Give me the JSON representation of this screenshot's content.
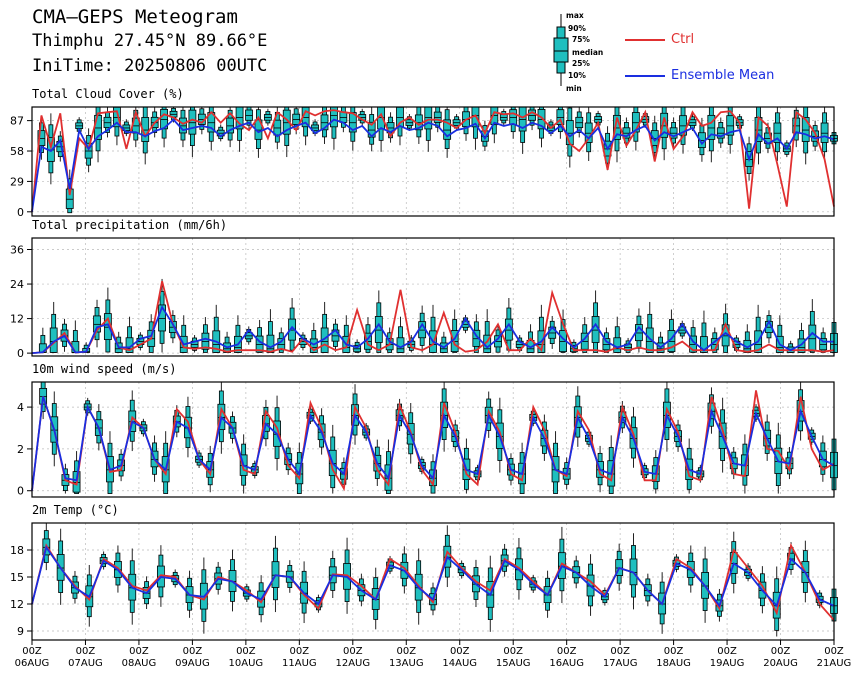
{
  "header": {
    "title": "CMA—GEPS Meteogram",
    "location": "Thimphu 27.45°N 89.66°E",
    "init_time": "IniTime: 20250806 00UTC"
  },
  "legend": {
    "ctrl_label": "Ctrl",
    "mean_label": "Ensemble Mean",
    "ctrl_color": "#e03030",
    "mean_color": "#1a2ee0",
    "box_color": "#1fbfbf",
    "box_labels": {
      "max": "max",
      "p90": "90%",
      "p75": "75%",
      "median": "median",
      "p25": "25%",
      "p10": "10%",
      "min": "min"
    }
  },
  "x_labels": [
    [
      "00Z",
      "06AUG"
    ],
    [
      "00Z",
      "07AUG"
    ],
    [
      "00Z",
      "08AUG"
    ],
    [
      "00Z",
      "09AUG"
    ],
    [
      "00Z",
      "10AUG"
    ],
    [
      "00Z",
      "11AUG"
    ],
    [
      "00Z",
      "12AUG"
    ],
    [
      "00Z",
      "13AUG"
    ],
    [
      "00Z",
      "14AUG"
    ],
    [
      "00Z",
      "15AUG"
    ],
    [
      "00Z",
      "16AUG"
    ],
    [
      "00Z",
      "17AUG"
    ],
    [
      "00Z",
      "18AUG"
    ],
    [
      "00Z",
      "19AUG"
    ],
    [
      "00Z",
      "20AUG"
    ],
    [
      "00Z",
      "21AUG"
    ]
  ],
  "chart_data": [
    {
      "type": "line",
      "title": "Total Cloud Cover (%)",
      "ylim": [
        -4,
        100
      ],
      "yticks": [
        0,
        29,
        58,
        87
      ],
      "grid": true,
      "series": [
        {
          "name": "Ctrl",
          "values": [
            0,
            92,
            62,
            94,
            16,
            70,
            60,
            94,
            95,
            96,
            60,
            95,
            72,
            85,
            93,
            90,
            84,
            88,
            85,
            95,
            85,
            94,
            84,
            78,
            90,
            70,
            95,
            88,
            78,
            96,
            92,
            96,
            97,
            95,
            94,
            88,
            83,
            93,
            72,
            85,
            90,
            83,
            88,
            88,
            85,
            80,
            88,
            92,
            75,
            95,
            93,
            94,
            90,
            95,
            90,
            80,
            88,
            65,
            58,
            70,
            85,
            40,
            90,
            63,
            78,
            95,
            48,
            90,
            60,
            72,
            95,
            82,
            85,
            95,
            96,
            85,
            3,
            90,
            82,
            45,
            5,
            95,
            88,
            75,
            50,
            5
          ]
        },
        {
          "name": "Ensemble Mean",
          "values": [
            0,
            62,
            58,
            68,
            22,
            78,
            60,
            72,
            78,
            85,
            76,
            76,
            72,
            77,
            80,
            88,
            78,
            80,
            82,
            80,
            72,
            78,
            82,
            85,
            76,
            80,
            72,
            78,
            82,
            85,
            75,
            80,
            88,
            85,
            78,
            82,
            72,
            80,
            76,
            82,
            78,
            80,
            85,
            82,
            72,
            78,
            80,
            84,
            70,
            85,
            82,
            84,
            80,
            85,
            82,
            75,
            82,
            72,
            78,
            70,
            80,
            60,
            74,
            72,
            78,
            82,
            68,
            76,
            72,
            76,
            80,
            65,
            74,
            72,
            76,
            78,
            50,
            74,
            65,
            70,
            60,
            76,
            74,
            70,
            72,
            69
          ]
        },
        {
          "name": "box_median",
          "values": [
            0,
            70,
            59,
            62,
            12,
            82,
            58,
            80,
            85,
            90,
            80,
            82,
            78,
            85,
            88,
            93,
            82,
            85,
            88,
            85,
            75,
            82,
            90,
            92,
            78,
            90,
            80,
            85,
            88,
            90,
            80,
            85,
            92,
            90,
            85,
            90,
            78,
            90,
            80,
            90,
            85,
            85,
            90,
            90,
            78,
            85,
            88,
            92,
            72,
            92,
            90,
            90,
            88,
            92,
            88,
            80,
            90,
            75,
            85,
            75,
            88,
            60,
            80,
            75,
            85,
            88,
            70,
            82,
            75,
            82,
            85,
            68,
            80,
            75,
            82,
            85,
            50,
            78,
            70,
            75,
            60,
            82,
            78,
            72,
            75,
            70
          ]
        }
      ]
    },
    {
      "type": "line",
      "title": "Total precipitation (mm/6h)",
      "ylim": [
        -1,
        40
      ],
      "yticks": [
        0,
        12,
        24,
        36
      ],
      "grid": true,
      "series": [
        {
          "name": "Ctrl",
          "values": [
            0,
            0.3,
            3.5,
            7,
            0.2,
            0.5,
            8,
            12,
            2,
            1,
            3,
            5,
            25,
            10,
            2,
            1.5,
            2,
            1.5,
            0.5,
            1,
            1,
            1,
            0.5,
            1.5,
            0.5,
            5,
            1,
            3,
            1,
            2,
            15,
            3,
            1,
            3,
            22,
            2,
            1,
            3,
            14,
            3,
            0.5,
            1,
            4,
            10,
            1,
            1,
            5,
            1,
            21,
            10,
            1,
            1,
            1,
            0.5,
            2,
            1,
            2,
            1,
            1,
            2,
            4,
            1,
            1,
            1,
            10,
            1,
            0.5,
            1,
            3,
            1,
            1,
            1,
            1,
            0.5,
            1
          ]
        },
        {
          "name": "Ensemble Mean",
          "values": [
            0,
            0.3,
            4,
            6,
            0.2,
            0.5,
            9,
            10,
            2,
            2,
            5,
            6,
            16,
            10,
            3,
            4,
            5,
            4,
            2,
            3,
            8,
            4,
            2,
            4,
            9,
            5,
            3,
            5,
            8,
            3,
            2,
            5,
            10,
            4,
            2,
            4,
            10,
            4,
            2,
            5,
            12,
            6,
            2,
            5,
            10,
            4,
            2,
            4,
            9,
            5,
            2,
            5,
            10,
            4,
            2,
            3,
            9,
            5,
            2,
            5,
            10,
            4,
            1,
            4,
            7,
            4,
            2,
            4,
            11,
            3,
            1,
            3,
            7,
            4,
            4
          ]
        },
        {
          "name": "box_median",
          "values": [
            0,
            0.3,
            4,
            6,
            0.2,
            0.5,
            10,
            9,
            1.5,
            1.5,
            4,
            5,
            12,
            9,
            2,
            3,
            4,
            3,
            1.5,
            2,
            6,
            3,
            1.5,
            3,
            8,
            4,
            2,
            4,
            6,
            2,
            1.5,
            4,
            8,
            3,
            1.5,
            3,
            8,
            3,
            1.5,
            4,
            10,
            5,
            1.5,
            4,
            8,
            3,
            1.5,
            3,
            7,
            4,
            1.5,
            4,
            8,
            3,
            1.5,
            2,
            7,
            4,
            1.5,
            4,
            8,
            3,
            1,
            3,
            6,
            3,
            1.5,
            3,
            9,
            2,
            1,
            2,
            5,
            3,
            3
          ]
        }
      ]
    },
    {
      "type": "line",
      "title": "10m wind speed (m/s)",
      "ylim": [
        -0.3,
        5.2
      ],
      "yticks": [
        0,
        2,
        4
      ],
      "grid": true,
      "series": [
        {
          "name": "Ctrl",
          "values": [
            0,
            4.5,
            2.9,
            0.5,
            0.3,
            4.0,
            3.0,
            0.9,
            1.0,
            3.5,
            3.0,
            1.5,
            0.8,
            3.9,
            3.3,
            1.5,
            0.8,
            3.9,
            3.0,
            1.0,
            0.8,
            3.8,
            3.0,
            1.2,
            0.6,
            4.2,
            3.0,
            1.0,
            0.1,
            4.0,
            3.0,
            1.0,
            0.3,
            4.1,
            2.8,
            1.0,
            0.3,
            4.2,
            2.8,
            0.8,
            0.3,
            3.8,
            2.8,
            0.8,
            0.5,
            4.0,
            2.9,
            1.0,
            0.7,
            3.8,
            2.9,
            0.8,
            0.5,
            4.0,
            2.7,
            0.5,
            0.5,
            3.9,
            2.8,
            0.7,
            0.5,
            4.5,
            2.9,
            0.8,
            0.7,
            4.8,
            2.0,
            1.9,
            1.0,
            4.5,
            2.0,
            1.0,
            1.3
          ]
        },
        {
          "name": "Ensemble Mean",
          "values": [
            0,
            4.5,
            2.9,
            0.6,
            0.5,
            4.0,
            3.0,
            1.0,
            1.2,
            3.3,
            3.0,
            1.5,
            1.0,
            3.3,
            3.0,
            1.5,
            1.0,
            3.5,
            3.0,
            1.2,
            1.0,
            3.2,
            2.7,
            1.5,
            0.8,
            3.6,
            2.8,
            1.3,
            0.8,
            3.6,
            2.8,
            1.3,
            0.6,
            3.6,
            2.7,
            1.2,
            0.6,
            3.6,
            2.6,
            1.0,
            0.8,
            3.6,
            2.6,
            1.0,
            0.8,
            3.5,
            2.5,
            1.0,
            0.8,
            3.5,
            2.5,
            1.0,
            0.8,
            3.5,
            2.5,
            0.9,
            0.8,
            3.6,
            2.6,
            1.0,
            0.8,
            3.8,
            2.6,
            1.3,
            1.2,
            3.7,
            2.5,
            1.4,
            1.3,
            3.8,
            2.6,
            1.5,
            1.2
          ]
        },
        {
          "name": "box_median",
          "values": [
            0,
            4.5,
            2.9,
            0.5,
            0.4,
            4.0,
            3.0,
            1.0,
            1.2,
            3.3,
            3.0,
            1.5,
            1.0,
            3.3,
            3.0,
            1.5,
            1.0,
            3.5,
            3.0,
            1.2,
            1.0,
            3.2,
            2.7,
            1.5,
            0.8,
            3.6,
            2.8,
            1.3,
            0.8,
            3.6,
            2.8,
            1.3,
            0.6,
            3.6,
            2.7,
            1.2,
            0.6,
            3.6,
            2.6,
            1.0,
            0.8,
            3.6,
            2.6,
            1.0,
            0.8,
            3.5,
            2.5,
            1.0,
            0.8,
            3.5,
            2.5,
            1.0,
            0.8,
            3.5,
            2.5,
            0.9,
            0.8,
            3.6,
            2.6,
            1.0,
            0.8,
            3.8,
            2.6,
            1.3,
            1.2,
            3.7,
            2.5,
            1.4,
            1.3,
            3.8,
            2.6,
            1.5,
            1.2
          ]
        }
      ]
    },
    {
      "type": "line",
      "title": "2m Temp (°C)",
      "ylim": [
        8,
        21
      ],
      "yticks": [
        9,
        12,
        15,
        18
      ],
      "grid": true,
      "series": [
        {
          "name": "Ctrl",
          "values": [
            12,
            18.5,
            16,
            14,
            12.5,
            17,
            16,
            14,
            13.5,
            15.2,
            15,
            13,
            12.5,
            15,
            14.5,
            13.5,
            12.2,
            15.2,
            15,
            13,
            11.5,
            15.3,
            15.2,
            14,
            12.5,
            17,
            16,
            14,
            12.2,
            17.8,
            16,
            14.5,
            13.5,
            17,
            16,
            14.5,
            13,
            16.5,
            15.5,
            14.5,
            13,
            16,
            15.5,
            13.5,
            12,
            17,
            16,
            14,
            11.5,
            18,
            16,
            14,
            11,
            18.5,
            15.5,
            12,
            10.2
          ]
        },
        {
          "name": "Ensemble Mean",
          "values": [
            12,
            18.3,
            16,
            13.8,
            12.8,
            16.8,
            15.8,
            13.8,
            13.2,
            15,
            14.8,
            13,
            12.8,
            14.8,
            14.5,
            13.2,
            12.5,
            15.2,
            15,
            13.2,
            12,
            15.2,
            15,
            13.5,
            12.5,
            16.3,
            15.7,
            13.8,
            12.5,
            17.2,
            15.8,
            14.2,
            13,
            16.8,
            15.8,
            14.2,
            13,
            16.2,
            15.5,
            14,
            12.8,
            16,
            15.5,
            13.5,
            12,
            16.5,
            15.8,
            14,
            11.8,
            16.5,
            15.5,
            13.5,
            11.8,
            17,
            15.5,
            12.5,
            11.8
          ]
        },
        {
          "name": "box_median",
          "values": [
            12,
            18.3,
            16,
            13.8,
            12.8,
            16.8,
            15.8,
            13.8,
            13.2,
            15,
            14.8,
            13,
            12.8,
            14.8,
            14.5,
            13.2,
            12.5,
            15.2,
            15,
            13.2,
            12,
            15.2,
            15,
            13.5,
            12.5,
            16.3,
            15.7,
            13.8,
            12.5,
            17.2,
            15.8,
            14.2,
            13,
            16.8,
            15.8,
            14.2,
            13,
            16.2,
            15.5,
            14,
            12.8,
            16,
            15.5,
            13.5,
            12,
            16.5,
            15.8,
            14,
            11.8,
            16.5,
            15.5,
            13.5,
            11.8,
            17,
            15.5,
            12.5,
            11.8
          ]
        }
      ]
    }
  ]
}
